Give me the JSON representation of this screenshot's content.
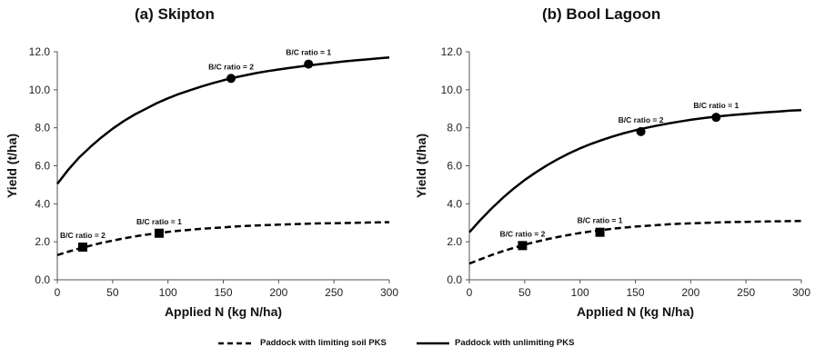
{
  "chart_data": [
    {
      "type": "line",
      "title": "(a) Skipton",
      "xlabel": "Applied N (kg N/ha)",
      "ylabel": "Yield (t/ha)",
      "xlim": [
        0,
        300
      ],
      "ylim": [
        0,
        12
      ],
      "xticks": [
        "0",
        "50",
        "100",
        "150",
        "200",
        "250",
        "300"
      ],
      "yticks": [
        "0.0",
        "2.0",
        "4.0",
        "6.0",
        "8.0",
        "10.0",
        "12.0"
      ],
      "grid": false,
      "series": [
        {
          "name": "Paddock with unlimiting PKS",
          "style": "solid",
          "x": [
            0,
            10,
            20,
            30,
            40,
            50,
            60,
            70,
            80,
            90,
            100,
            110,
            120,
            130,
            140,
            150,
            160,
            170,
            180,
            190,
            200,
            210,
            220,
            230,
            240,
            250,
            260,
            270,
            280,
            290,
            300
          ],
          "y": [
            5.05,
            5.8,
            6.45,
            7.0,
            7.5,
            7.95,
            8.35,
            8.7,
            9.0,
            9.3,
            9.55,
            9.78,
            9.98,
            10.17,
            10.34,
            10.5,
            10.64,
            10.76,
            10.88,
            10.98,
            11.07,
            11.15,
            11.23,
            11.3,
            11.37,
            11.43,
            11.5,
            11.55,
            11.6,
            11.65,
            11.7
          ],
          "markers": [
            {
              "x": 157,
              "y": 10.6,
              "label": "B/C ratio = 2",
              "shape": "circle"
            },
            {
              "x": 227,
              "y": 11.35,
              "label": "B/C ratio = 1",
              "shape": "circle"
            }
          ]
        },
        {
          "name": "Paddock with limiting soil PKS",
          "style": "dashed",
          "x": [
            0,
            10,
            20,
            30,
            40,
            50,
            60,
            70,
            80,
            90,
            100,
            110,
            120,
            130,
            140,
            150,
            160,
            170,
            180,
            190,
            200,
            210,
            220,
            230,
            240,
            250,
            260,
            270,
            280,
            290,
            300
          ],
          "y": [
            1.3,
            1.48,
            1.65,
            1.8,
            1.94,
            2.06,
            2.18,
            2.28,
            2.37,
            2.45,
            2.52,
            2.58,
            2.63,
            2.68,
            2.72,
            2.76,
            2.8,
            2.83,
            2.86,
            2.88,
            2.9,
            2.92,
            2.94,
            2.96,
            2.97,
            2.98,
            2.99,
            3.0,
            3.01,
            3.02,
            3.03
          ],
          "markers": [
            {
              "x": 23,
              "y": 1.72,
              "label": "B/C ratio = 2",
              "shape": "square"
            },
            {
              "x": 92,
              "y": 2.45,
              "label": "B/C ratio = 1",
              "shape": "square"
            }
          ]
        }
      ]
    },
    {
      "type": "line",
      "title": "(b) Bool Lagoon",
      "xlabel": "Applied N (kg N/ha)",
      "ylabel": "Yield (t/ha)",
      "xlim": [
        0,
        300
      ],
      "ylim": [
        0,
        12
      ],
      "xticks": [
        "0",
        "50",
        "100",
        "150",
        "200",
        "250",
        "300"
      ],
      "yticks": [
        "0.0",
        "2.0",
        "4.0",
        "6.0",
        "8.0",
        "10.0",
        "12.0"
      ],
      "grid": false,
      "series": [
        {
          "name": "Paddock with unlimiting PKS",
          "style": "solid",
          "x": [
            0,
            10,
            20,
            30,
            40,
            50,
            60,
            70,
            80,
            90,
            100,
            110,
            120,
            130,
            140,
            150,
            160,
            170,
            180,
            190,
            200,
            210,
            220,
            230,
            240,
            250,
            260,
            270,
            280,
            290,
            300
          ],
          "y": [
            2.5,
            3.15,
            3.75,
            4.3,
            4.8,
            5.25,
            5.65,
            6.02,
            6.35,
            6.65,
            6.92,
            7.15,
            7.36,
            7.55,
            7.72,
            7.87,
            8.0,
            8.12,
            8.23,
            8.33,
            8.42,
            8.5,
            8.57,
            8.63,
            8.68,
            8.73,
            8.78,
            8.82,
            8.86,
            8.9,
            8.93
          ],
          "markers": [
            {
              "x": 155,
              "y": 7.8,
              "label": "B/C ratio = 2",
              "shape": "circle"
            },
            {
              "x": 223,
              "y": 8.55,
              "label": "B/C ratio = 1",
              "shape": "circle"
            }
          ]
        },
        {
          "name": "Paddock with limiting soil PKS",
          "style": "dashed",
          "x": [
            0,
            10,
            20,
            30,
            40,
            50,
            60,
            70,
            80,
            90,
            100,
            110,
            120,
            130,
            140,
            150,
            160,
            170,
            180,
            190,
            200,
            210,
            220,
            230,
            240,
            250,
            260,
            270,
            280,
            290,
            300
          ],
          "y": [
            0.85,
            1.08,
            1.3,
            1.5,
            1.68,
            1.85,
            2.0,
            2.13,
            2.25,
            2.36,
            2.46,
            2.55,
            2.62,
            2.69,
            2.75,
            2.8,
            2.84,
            2.88,
            2.92,
            2.95,
            2.97,
            2.99,
            3.01,
            3.03,
            3.04,
            3.05,
            3.06,
            3.07,
            3.08,
            3.09,
            3.1
          ],
          "markers": [
            {
              "x": 48,
              "y": 1.8,
              "label": "B/C ratio = 2",
              "shape": "square"
            },
            {
              "x": 118,
              "y": 2.5,
              "label": "B/C ratio = 1",
              "shape": "square"
            }
          ]
        }
      ]
    }
  ],
  "legend": {
    "dashed_label": "Paddock with limiting soil PKS",
    "solid_label": "Paddock with unlimiting PKS"
  }
}
